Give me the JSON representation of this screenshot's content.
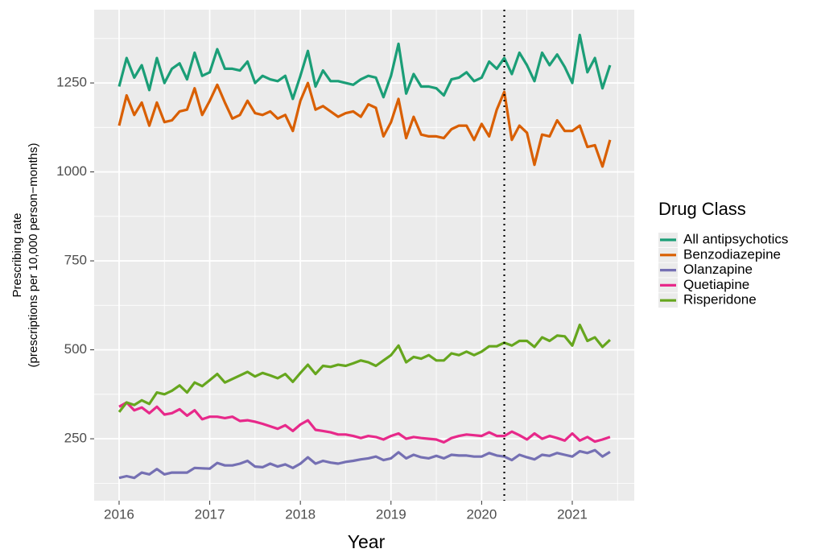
{
  "chart_data": {
    "type": "line",
    "x_label": "Year",
    "y_label": [
      "Prescribing rate",
      "(prescriptions per 10,000 person−months)"
    ],
    "legend_title": "Drug Class",
    "legend_position": "right",
    "grid": true,
    "vline": 2020.25,
    "x": [
      2016.0,
      2016.083,
      2016.167,
      2016.25,
      2016.333,
      2016.417,
      2016.5,
      2016.583,
      2016.667,
      2016.75,
      2016.833,
      2016.917,
      2017.0,
      2017.083,
      2017.167,
      2017.25,
      2017.333,
      2017.417,
      2017.5,
      2017.583,
      2017.667,
      2017.75,
      2017.833,
      2017.917,
      2018.0,
      2018.083,
      2018.167,
      2018.25,
      2018.333,
      2018.417,
      2018.5,
      2018.583,
      2018.667,
      2018.75,
      2018.833,
      2018.917,
      2019.0,
      2019.083,
      2019.167,
      2019.25,
      2019.333,
      2019.417,
      2019.5,
      2019.583,
      2019.667,
      2019.75,
      2019.833,
      2019.917,
      2020.0,
      2020.083,
      2020.167,
      2020.25,
      2020.333,
      2020.417,
      2020.5,
      2020.583,
      2020.667,
      2020.75,
      2020.833,
      2020.917,
      2021.0,
      2021.083,
      2021.167,
      2021.25,
      2021.333,
      2021.417
    ],
    "xlim": [
      2015.725,
      2021.684
    ],
    "xticks": [
      2016,
      2017,
      2018,
      2019,
      2020,
      2021
    ],
    "ylim": [
      76,
      1456
    ],
    "yticks": [
      250,
      500,
      750,
      1000,
      1250
    ],
    "series": [
      {
        "name": "All antipsychotics",
        "color": "#1b9e77",
        "values": [
          1240,
          1320,
          1265,
          1300,
          1230,
          1320,
          1250,
          1290,
          1305,
          1260,
          1335,
          1270,
          1280,
          1345,
          1290,
          1290,
          1285,
          1310,
          1250,
          1270,
          1260,
          1255,
          1270,
          1205,
          1270,
          1340,
          1240,
          1285,
          1255,
          1255,
          1250,
          1245,
          1260,
          1270,
          1265,
          1210,
          1270,
          1360,
          1220,
          1275,
          1240,
          1240,
          1235,
          1215,
          1260,
          1265,
          1280,
          1255,
          1265,
          1310,
          1290,
          1320,
          1275,
          1335,
          1300,
          1255,
          1335,
          1300,
          1330,
          1295,
          1250,
          1385,
          1280,
          1320,
          1235,
          1300
        ]
      },
      {
        "name": "Benzodiazepine",
        "color": "#d95f02",
        "values": [
          1130,
          1215,
          1160,
          1195,
          1130,
          1195,
          1140,
          1145,
          1170,
          1175,
          1235,
          1160,
          1200,
          1245,
          1195,
          1150,
          1160,
          1200,
          1165,
          1160,
          1170,
          1150,
          1160,
          1115,
          1200,
          1250,
          1175,
          1185,
          1170,
          1155,
          1165,
          1170,
          1155,
          1190,
          1180,
          1100,
          1140,
          1205,
          1095,
          1155,
          1105,
          1100,
          1100,
          1095,
          1120,
          1130,
          1130,
          1090,
          1135,
          1100,
          1175,
          1225,
          1090,
          1130,
          1110,
          1020,
          1105,
          1100,
          1145,
          1115,
          1115,
          1130,
          1070,
          1075,
          1015,
          1090
        ]
      },
      {
        "name": "Olanzapine",
        "color": "#7570b3",
        "values": [
          140,
          145,
          140,
          155,
          150,
          165,
          150,
          155,
          155,
          155,
          168,
          167,
          166,
          182,
          175,
          175,
          180,
          188,
          172,
          170,
          180,
          172,
          178,
          168,
          180,
          198,
          180,
          188,
          183,
          180,
          185,
          188,
          192,
          195,
          200,
          190,
          195,
          212,
          195,
          205,
          198,
          195,
          202,
          195,
          205,
          203,
          203,
          200,
          200,
          210,
          203,
          200,
          190,
          205,
          198,
          192,
          205,
          202,
          210,
          205,
          200,
          215,
          210,
          218,
          200,
          213
        ]
      },
      {
        "name": "Quetiapine",
        "color": "#e7298a",
        "values": [
          340,
          352,
          330,
          338,
          322,
          340,
          318,
          322,
          333,
          315,
          330,
          305,
          312,
          312,
          308,
          312,
          300,
          302,
          298,
          292,
          285,
          278,
          288,
          272,
          290,
          302,
          275,
          272,
          268,
          262,
          262,
          258,
          252,
          258,
          255,
          248,
          258,
          265,
          250,
          255,
          252,
          250,
          248,
          240,
          252,
          258,
          262,
          260,
          258,
          268,
          258,
          258,
          270,
          260,
          248,
          265,
          250,
          258,
          252,
          245,
          265,
          245,
          255,
          242,
          248,
          255
        ]
      },
      {
        "name": "Risperidone",
        "color": "#66a61e",
        "values": [
          325,
          352,
          345,
          358,
          348,
          380,
          375,
          385,
          400,
          380,
          408,
          398,
          415,
          432,
          408,
          418,
          428,
          438,
          425,
          435,
          428,
          420,
          432,
          410,
          435,
          458,
          432,
          455,
          452,
          458,
          455,
          462,
          470,
          465,
          455,
          470,
          485,
          512,
          465,
          480,
          475,
          485,
          470,
          470,
          490,
          485,
          495,
          485,
          495,
          510,
          510,
          520,
          512,
          525,
          525,
          508,
          535,
          525,
          540,
          538,
          512,
          570,
          525,
          535,
          508,
          528
        ]
      }
    ]
  }
}
